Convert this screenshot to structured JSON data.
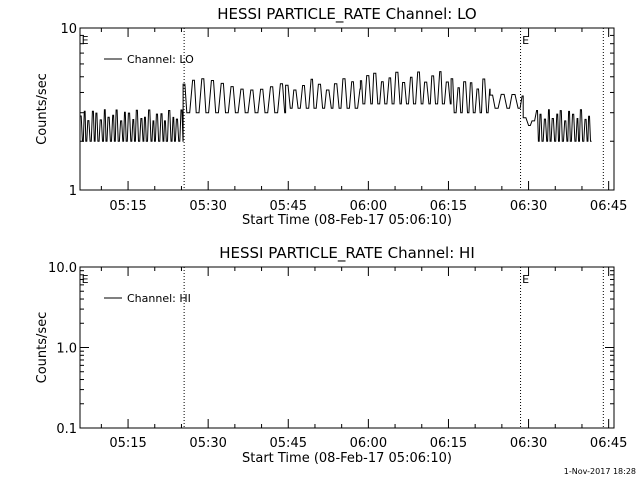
{
  "chart_data": [
    {
      "type": "line",
      "title": "HESSI PARTICLE_RATE Channel: LO",
      "xlabel": "Start Time (08-Feb-17 05:06:10)",
      "ylabel": "Counts/sec",
      "yscale": "log",
      "ylim": [
        1,
        10
      ],
      "ytick_labels": [
        "1",
        "10"
      ],
      "xlim_minutes": [
        306,
        406
      ],
      "xtick_labels": [
        "05:15",
        "05:30",
        "05:45",
        "06:00",
        "06:15",
        "06:30",
        "06:45"
      ],
      "xtick_minutes": [
        315,
        330,
        345,
        360,
        375,
        390,
        405
      ],
      "event_markers_minutes": [
        325.5,
        388.5,
        404
      ],
      "event_labels": [
        {
          "text": "E",
          "minute": 306.3
        },
        {
          "text": "E",
          "minute": 388.8
        }
      ],
      "legend": "Channel: LO",
      "legend_position": "top-left",
      "series": [
        {
          "name": "Channel: LO",
          "segments": [
            {
              "start": 306,
              "end": 325.3,
              "low": 2.0,
              "high": 2.9,
              "period": 0.45
            },
            {
              "start": 325.3,
              "end": 344.5,
              "low": 3.0,
              "high": 4.5,
              "period": 1.1
            },
            {
              "start": 344.5,
              "end": 358.5,
              "low": 3.2,
              "high": 4.5,
              "period": 0.9
            },
            {
              "start": 358.5,
              "end": 375.5,
              "low": 3.4,
              "high": 5.0,
              "period": 0.8
            },
            {
              "start": 375.5,
              "end": 382.8,
              "low": 3.0,
              "high": 4.5,
              "period": 0.7
            },
            {
              "start": 382.8,
              "end": 389,
              "low": 3.2,
              "high": 4.1,
              "period": 1.2
            },
            {
              "start": 389,
              "end": 391.5,
              "low": 2.5,
              "high": 2.9,
              "period": 1.0
            },
            {
              "start": 391.5,
              "end": 401.8,
              "low": 2.0,
              "high": 2.9,
              "period": 0.45
            }
          ]
        }
      ]
    },
    {
      "type": "line",
      "title": "HESSI PARTICLE_RATE Channel: HI",
      "xlabel": "Start Time (08-Feb-17 05:06:10)",
      "ylabel": "Counts/sec",
      "yscale": "log",
      "ylim": [
        0.1,
        10
      ],
      "ytick_labels": [
        "0.1",
        "1.0",
        "10.0"
      ],
      "xlim_minutes": [
        306,
        406
      ],
      "xtick_labels": [
        "05:15",
        "05:30",
        "05:45",
        "06:00",
        "06:15",
        "06:30",
        "06:45"
      ],
      "xtick_minutes": [
        315,
        330,
        345,
        360,
        375,
        390,
        405
      ],
      "event_markers_minutes": [
        325.5,
        388.5,
        404
      ],
      "event_labels": [
        {
          "text": "E",
          "minute": 306.3
        },
        {
          "text": "E",
          "minute": 388.8
        }
      ],
      "legend": "Channel: HI",
      "legend_position": "top-left",
      "series": [
        {
          "name": "Channel: HI",
          "segments": []
        }
      ]
    }
  ],
  "footer": {
    "timestamp": "1-Nov-2017 18:28"
  }
}
